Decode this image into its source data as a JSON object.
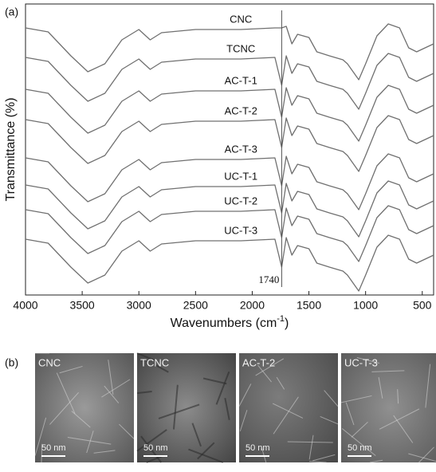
{
  "chart_data": {
    "type": "line",
    "panel_label": "(a)",
    "x_label": {
      "text": "Wavenumbers (cm",
      "superscript": "-1",
      "suffix": ")"
    },
    "y_label": "Transmittance (%)",
    "color": "#707070",
    "x": [
      4000,
      3800,
      3600,
      3450,
      3300,
      3150,
      3000,
      2900,
      2800,
      2500,
      2100,
      1800,
      1740,
      1700,
      1650,
      1600,
      1500,
      1430,
      1320,
      1200,
      1160,
      1110,
      1060,
      1000,
      900,
      800,
      700,
      620,
      550,
      400
    ],
    "series": [
      {
        "name": "CNC",
        "values": [
          335,
          330,
          300,
          280,
          290,
          320,
          333,
          320,
          329,
          333,
          333,
          335,
          335,
          337,
          315,
          327,
          323,
          305,
          300,
          295,
          290,
          280,
          270,
          290,
          325,
          340,
          335,
          310,
          305,
          315
        ]
      },
      {
        "name": "TCNC",
        "values": [
          298,
          293,
          263,
          243,
          253,
          283,
          296,
          283,
          292,
          296,
          296,
          298,
          263,
          300,
          278,
          290,
          286,
          268,
          263,
          258,
          253,
          243,
          233,
          253,
          288,
          303,
          298,
          273,
          268,
          278
        ]
      },
      {
        "name": "AC-T-1",
        "values": [
          258,
          253,
          223,
          203,
          213,
          243,
          256,
          243,
          252,
          256,
          256,
          258,
          223,
          260,
          238,
          250,
          246,
          228,
          223,
          218,
          213,
          203,
          193,
          213,
          248,
          263,
          258,
          233,
          228,
          238
        ]
      },
      {
        "name": "AC-T-2",
        "values": [
          220,
          215,
          185,
          165,
          175,
          205,
          218,
          205,
          214,
          218,
          218,
          220,
          185,
          222,
          200,
          212,
          208,
          190,
          185,
          180,
          175,
          165,
          155,
          175,
          210,
          225,
          220,
          195,
          190,
          200
        ]
      },
      {
        "name": "AC-T-3",
        "values": [
          172,
          167,
          137,
          117,
          127,
          157,
          170,
          157,
          166,
          170,
          170,
          172,
          137,
          174,
          152,
          164,
          160,
          142,
          137,
          132,
          127,
          117,
          107,
          127,
          162,
          177,
          172,
          147,
          142,
          152
        ]
      },
      {
        "name": "UC-T-1",
        "values": [
          138,
          133,
          103,
          83,
          93,
          123,
          136,
          123,
          132,
          136,
          136,
          138,
          103,
          140,
          118,
          130,
          126,
          108,
          103,
          98,
          93,
          83,
          73,
          93,
          128,
          143,
          138,
          113,
          108,
          118
        ]
      },
      {
        "name": "UC-T-2",
        "values": [
          107,
          102,
          72,
          52,
          62,
          92,
          105,
          92,
          101,
          105,
          105,
          107,
          72,
          109,
          87,
          99,
          95,
          77,
          72,
          67,
          62,
          52,
          42,
          62,
          97,
          112,
          107,
          82,
          77,
          87
        ]
      },
      {
        "name": "UC-T-3",
        "values": [
          70,
          65,
          35,
          15,
          25,
          55,
          68,
          55,
          64,
          68,
          68,
          70,
          35,
          72,
          50,
          62,
          58,
          40,
          35,
          30,
          25,
          15,
          5,
          25,
          60,
          75,
          70,
          45,
          40,
          50
        ]
      }
    ],
    "xlim": [
      4000,
      400
    ],
    "ylim": [
      0,
      365
    ],
    "xticks": [
      4000,
      3500,
      3000,
      2500,
      2000,
      1500,
      1000,
      500
    ],
    "annotation": {
      "x": 1740,
      "label": "1740"
    }
  },
  "images": {
    "panel_label": "(b)",
    "items": [
      {
        "label": "CNC",
        "scale": "50 nm"
      },
      {
        "label": "TCNC",
        "scale": "50 nm"
      },
      {
        "label": "AC-T-2",
        "scale": "50 nm"
      },
      {
        "label": "UC-T-3",
        "scale": "50 nm"
      }
    ]
  }
}
